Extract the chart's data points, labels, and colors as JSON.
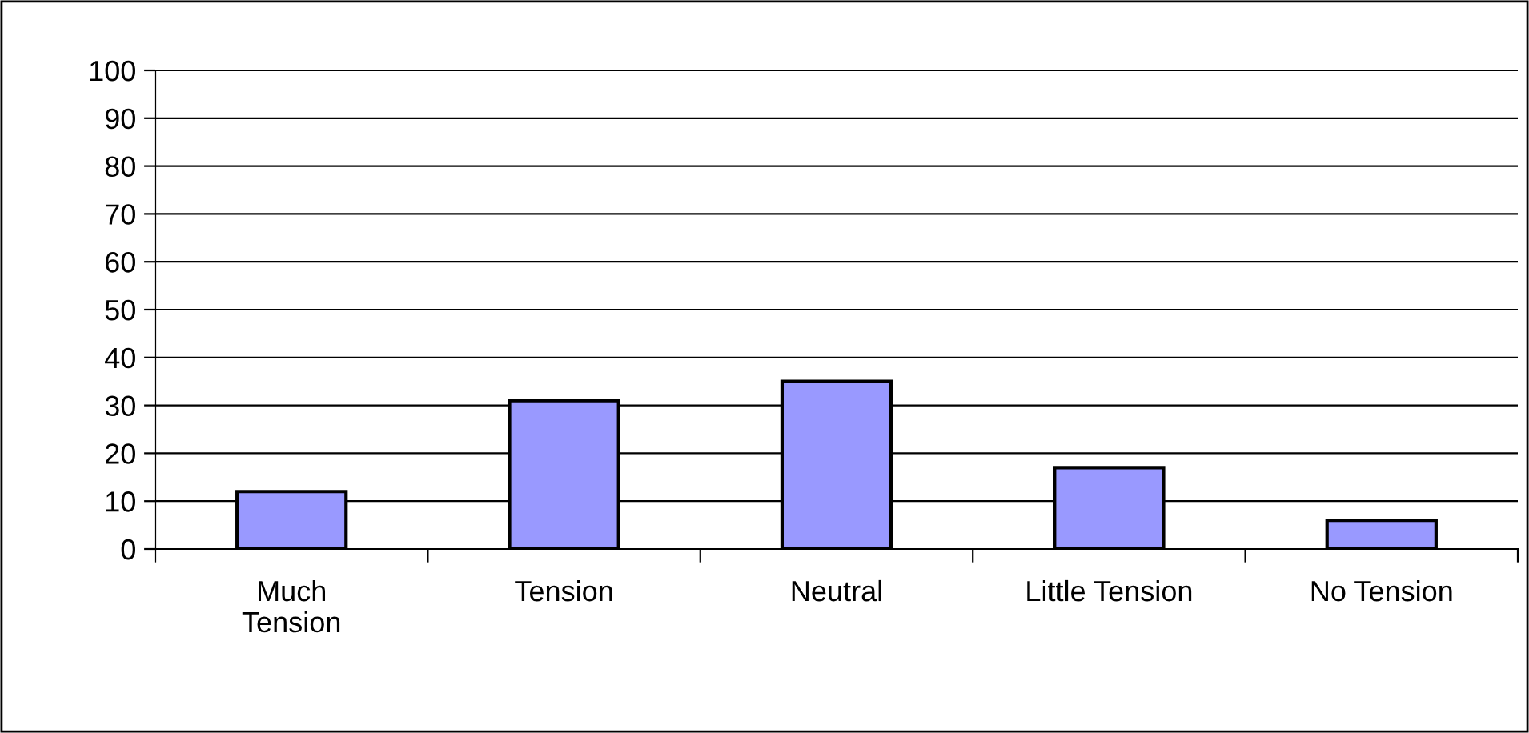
{
  "chart_data": {
    "type": "bar",
    "categories": [
      "Much\nTension",
      "Tension",
      "Neutral",
      "Little Tension",
      "No Tension"
    ],
    "values": [
      12,
      31,
      35,
      17,
      6
    ],
    "color": "#9999ff",
    "ylim": [
      0,
      100
    ],
    "yticks": [
      0,
      10,
      20,
      30,
      40,
      50,
      60,
      70,
      80,
      90,
      100
    ],
    "grid": "y",
    "legend": false
  }
}
